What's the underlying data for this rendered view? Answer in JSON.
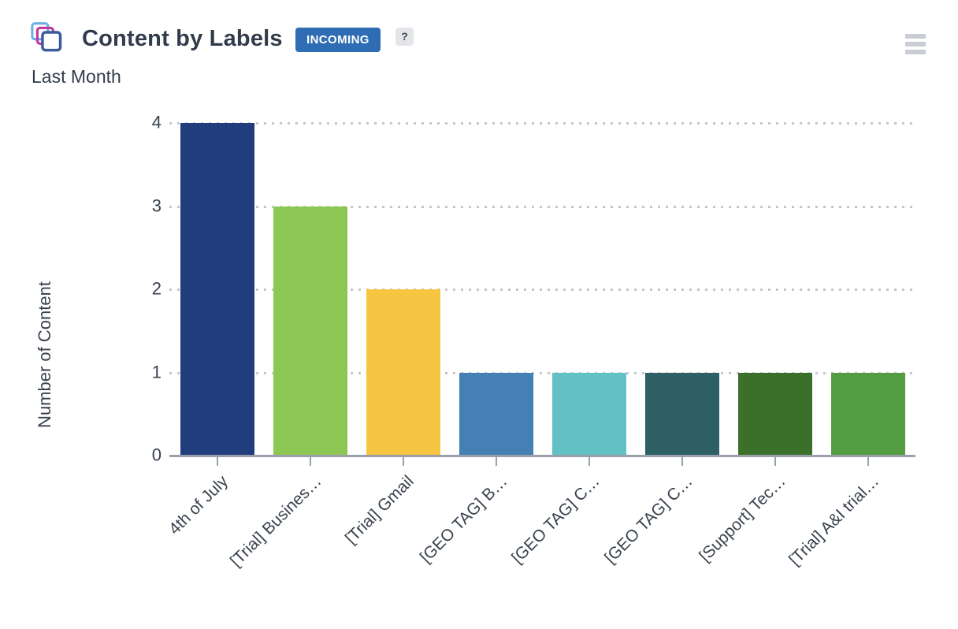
{
  "header": {
    "title": "Content by Labels",
    "badge": "INCOMING",
    "badge_color": "#2e6db4",
    "help_label": "?",
    "subtitle": "Last Month",
    "icon": "content-stack-icon",
    "icon_colors": [
      "#6fb0e3",
      "#c0399f",
      "#3c5b9c"
    ],
    "menu_icon": "hamburger-menu-icon"
  },
  "chart_data": {
    "type": "bar",
    "title": "Content by Labels",
    "subtitle": "Last Month",
    "categories": [
      "4th of July",
      "[Trial] Busines…",
      "[Trial] Gmail",
      "[GEO TAG] B…",
      "[GEO TAG] C…",
      "[GEO TAG] C…",
      "[Support] Tec…",
      "[Trial] A&I trial…"
    ],
    "values": [
      4,
      3,
      2,
      1,
      1,
      1,
      1,
      1
    ],
    "bar_colors": [
      "#203d7d",
      "#8cc653",
      "#f6c642",
      "#4480b3",
      "#61c1c5",
      "#2e5f64",
      "#3b702b",
      "#549c40"
    ],
    "xlabel": "",
    "ylabel": "Number of Content",
    "ylim": [
      0,
      4
    ],
    "yticks": [
      0,
      1,
      2,
      3,
      4
    ],
    "grid": "horizontal-dotted",
    "legend": "none"
  }
}
